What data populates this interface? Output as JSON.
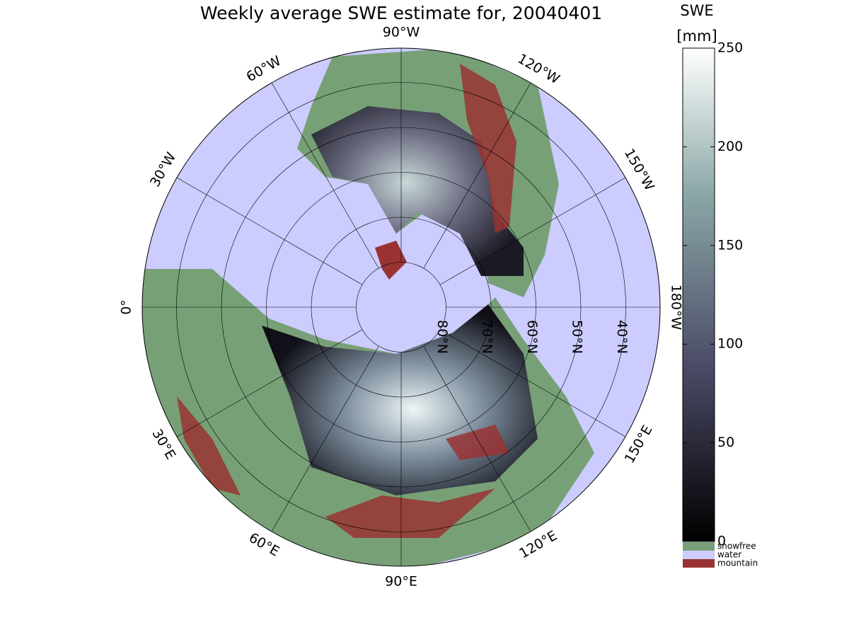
{
  "title": "Weekly average SWE estimate for, 20040401",
  "map": {
    "lon_labels": [
      {
        "value": -90,
        "label": "90°W"
      },
      {
        "value": -120,
        "label": "120°W"
      },
      {
        "value": -150,
        "label": "150°W"
      },
      {
        "value": -180,
        "label": "180°W"
      },
      {
        "value": -60,
        "label": "60°W"
      },
      {
        "value": -30,
        "label": "30°W"
      },
      {
        "value": 0,
        "label": "0°"
      },
      {
        "value": 30,
        "label": "30°E"
      },
      {
        "value": 60,
        "label": "60°E"
      },
      {
        "value": 90,
        "label": "90°E"
      },
      {
        "value": 120,
        "label": "120°E"
      },
      {
        "value": 150,
        "label": "150°E"
      }
    ],
    "lat_labels": [
      {
        "value": 80,
        "label": "80°N"
      },
      {
        "value": 70,
        "label": "70°N"
      },
      {
        "value": 60,
        "label": "60°N"
      },
      {
        "value": 50,
        "label": "50°N"
      },
      {
        "value": 40,
        "label": "40°N"
      }
    ]
  },
  "colorbar": {
    "title": "SWE",
    "unit": "[mm]",
    "lim": [
      0,
      250
    ],
    "ticks": [
      0,
      50,
      100,
      150,
      200,
      250
    ]
  },
  "legend": [
    {
      "name": "snowfree",
      "color": "#77a077"
    },
    {
      "name": "water",
      "color": "#ccccff"
    },
    {
      "name": "mountain",
      "color": "#993333"
    }
  ]
}
